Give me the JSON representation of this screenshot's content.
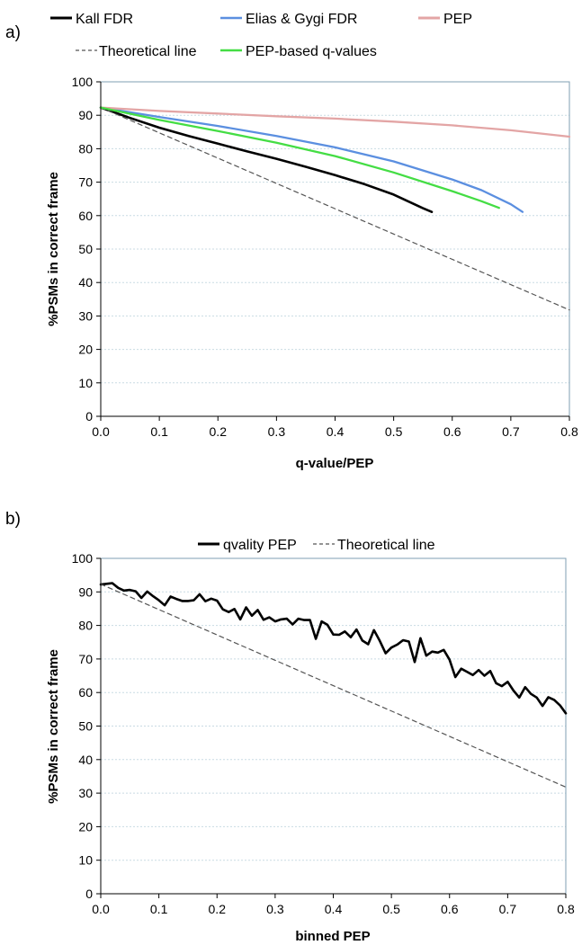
{
  "chart_data": [
    {
      "type": "line",
      "panel_label": "a)",
      "xlabel": "q-value/PEP",
      "ylabel": "%PSMs in correct frame",
      "xlim": [
        0,
        0.8
      ],
      "ylim": [
        0,
        100
      ],
      "x_ticks": [
        "0.0",
        "0.1",
        "0.2",
        "0.3",
        "0.4",
        "0.5",
        "0.6",
        "0.7",
        "0.8"
      ],
      "y_ticks": [
        "0",
        "10",
        "20",
        "30",
        "40",
        "50",
        "60",
        "70",
        "80",
        "90",
        "100"
      ],
      "grid": "horizontal-dotted",
      "legend_position": "top",
      "series": [
        {
          "name": "Kall FDR",
          "color": "#000000",
          "dash": "solid",
          "x": [
            0,
            0.05,
            0.1,
            0.15,
            0.2,
            0.25,
            0.3,
            0.35,
            0.4,
            0.45,
            0.5,
            0.55,
            0.565
          ],
          "y": [
            92.3,
            89.2,
            86.3,
            83.8,
            81.5,
            79.2,
            77.0,
            74.6,
            72.1,
            69.4,
            66.3,
            62.2,
            61.1
          ]
        },
        {
          "name": "Elias & Gygi FDR",
          "color": "#5b8fe0",
          "dash": "solid",
          "x": [
            0,
            0.1,
            0.2,
            0.3,
            0.4,
            0.5,
            0.6,
            0.65,
            0.7,
            0.72
          ],
          "y": [
            92.3,
            89.5,
            86.8,
            83.8,
            80.4,
            76.2,
            70.8,
            67.6,
            63.4,
            61.1
          ]
        },
        {
          "name": "PEP",
          "color": "#e3a5a5",
          "dash": "solid",
          "x": [
            0,
            0.1,
            0.2,
            0.3,
            0.4,
            0.5,
            0.6,
            0.7,
            0.8
          ],
          "y": [
            92.3,
            91.3,
            90.5,
            89.7,
            89.0,
            88.1,
            87.0,
            85.5,
            83.6
          ]
        },
        {
          "name": "Theoretical line",
          "color": "#555555",
          "dash": "dashed",
          "x": [
            0,
            0.8
          ],
          "y": [
            92.3,
            31.8
          ]
        },
        {
          "name": "PEP-based q-values",
          "color": "#44dd44",
          "dash": "solid",
          "x": [
            0,
            0.1,
            0.2,
            0.3,
            0.4,
            0.5,
            0.6,
            0.65,
            0.68
          ],
          "y": [
            92.3,
            88.6,
            85.3,
            81.8,
            77.8,
            72.9,
            67.3,
            64.3,
            62.3
          ]
        }
      ]
    },
    {
      "type": "line",
      "panel_label": "b)",
      "xlabel": "binned PEP",
      "ylabel": "%PSMs in correct frame",
      "xlim": [
        0,
        0.8
      ],
      "ylim": [
        0,
        100
      ],
      "x_ticks": [
        "0.0",
        "0.1",
        "0.2",
        "0.3",
        "0.4",
        "0.5",
        "0.6",
        "0.7",
        "0.8"
      ],
      "y_ticks": [
        "0",
        "10",
        "20",
        "30",
        "40",
        "50",
        "60",
        "70",
        "80",
        "90",
        "100"
      ],
      "grid": "horizontal-dotted",
      "legend_position": "top",
      "series": [
        {
          "name": "qvality PEP",
          "color": "#000000",
          "dash": "solid",
          "x": [
            0,
            0.01,
            0.02,
            0.03,
            0.04,
            0.05,
            0.06,
            0.07,
            0.08,
            0.09,
            0.1,
            0.11,
            0.12,
            0.13,
            0.14,
            0.15,
            0.16,
            0.17,
            0.18,
            0.19,
            0.2,
            0.21,
            0.22,
            0.23,
            0.24,
            0.25,
            0.26,
            0.27,
            0.28,
            0.29,
            0.3,
            0.31,
            0.32,
            0.33,
            0.34,
            0.35,
            0.36,
            0.37,
            0.38,
            0.39,
            0.4,
            0.41,
            0.42,
            0.43,
            0.44,
            0.45,
            0.46,
            0.47,
            0.48,
            0.49,
            0.5,
            0.51,
            0.52,
            0.53,
            0.54,
            0.55,
            0.56,
            0.57,
            0.58,
            0.59,
            0.6,
            0.61,
            0.62,
            0.63,
            0.64,
            0.65,
            0.66,
            0.67,
            0.68,
            0.69,
            0.7,
            0.71,
            0.72,
            0.73,
            0.74,
            0.75,
            0.76,
            0.77,
            0.78,
            0.79,
            0.8
          ],
          "y": [
            92.2,
            92.4,
            92.6,
            91.2,
            90.4,
            90.6,
            90.2,
            88.2,
            90.1,
            88.7,
            87.5,
            86.0,
            88.6,
            87.9,
            87.3,
            87.3,
            87.5,
            89.3,
            87.2,
            88.0,
            87.4,
            84.8,
            84.0,
            84.9,
            81.8,
            85.4,
            82.9,
            84.6,
            81.7,
            82.4,
            81.2,
            81.8,
            82.0,
            80.3,
            82.0,
            81.6,
            81.6,
            76.0,
            81.2,
            80.2,
            77.3,
            77.2,
            78.2,
            76.5,
            78.8,
            75.5,
            74.4,
            78.6,
            75.4,
            71.7,
            73.4,
            74.3,
            75.6,
            75.2,
            69.1,
            76.2,
            71.0,
            72.2,
            71.9,
            72.7,
            69.8,
            64.6,
            67.1,
            66.2,
            65.2,
            66.7,
            65.0,
            66.4,
            62.8,
            61.9,
            63.2,
            60.6,
            58.5,
            61.6,
            59.6,
            58.5,
            56.0,
            58.6,
            57.8,
            56.2,
            53.8
          ]
        },
        {
          "name": "Theoretical line",
          "color": "#555555",
          "dash": "dashed",
          "x": [
            0,
            0.8
          ],
          "y": [
            92.3,
            31.8
          ]
        }
      ]
    }
  ]
}
